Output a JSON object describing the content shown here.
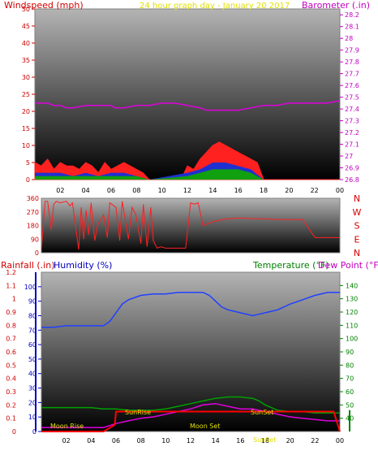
{
  "header": {
    "left_title": "Windspeed (mph)",
    "center_title": "24 hour graph day - January 20 2017",
    "right_title": "Barometer (.in)"
  },
  "bottom_header": {
    "rain_label": "Rainfall (.in)",
    "humidity_label": "Humidity (%)",
    "temp_label": "Temperature (°F)",
    "dew_label": "Dew Point (°F)"
  },
  "colors": {
    "wind": "#ff2020",
    "gust_mid": "#2030d0",
    "gust_low": "#10a010",
    "barometer": "#e000e0",
    "direction": "#ff2020",
    "humidity": "#2040ff",
    "temperature": "#00a000",
    "dew_point": "#e000e0",
    "rain": "#ff0000",
    "title": "#e0e000",
    "axis_red": "#d00000",
    "axis_magenta": "#c000c0",
    "axis_green": "#008000",
    "axis_blue": "#0000c0"
  },
  "chart_data": [
    {
      "type": "area",
      "name": "wind-panel",
      "x_ticks": [
        "02",
        "04",
        "06",
        "08",
        "10",
        "12",
        "14",
        "16",
        "18",
        "20",
        "22",
        "00"
      ],
      "wind_axis": {
        "ticks": [
          0,
          5,
          10,
          15,
          20,
          25,
          30,
          35,
          40,
          45,
          50
        ],
        "ylim": [
          0,
          50
        ]
      },
      "baro_axis": {
        "ticks": [
          "26.8",
          "26.9",
          "27",
          "27.1",
          "27.2",
          "27.3",
          "27.4",
          "27.5",
          "27.6",
          "27.7",
          "27.8",
          "27.9",
          "28",
          "28.1",
          "28.2"
        ],
        "ylim": [
          26.8,
          28.25
        ]
      },
      "barometer": {
        "x": [
          0,
          1,
          1.5,
          2,
          2.5,
          3,
          4,
          5,
          6,
          6.3,
          7,
          8,
          9,
          10,
          11,
          12,
          13,
          13.5,
          14,
          15,
          16,
          17,
          18,
          19,
          20,
          20.5,
          21,
          22,
          23,
          24
        ],
        "y": [
          27.45,
          27.45,
          27.43,
          27.43,
          27.41,
          27.41,
          27.43,
          27.43,
          27.43,
          27.41,
          27.41,
          27.43,
          27.43,
          27.45,
          27.45,
          27.43,
          27.41,
          27.39,
          27.39,
          27.39,
          27.39,
          27.41,
          27.43,
          27.43,
          27.45,
          27.45,
          27.45,
          27.45,
          27.45,
          27.47
        ]
      },
      "wind_speed": {
        "x": [
          0,
          0.5,
          1,
          1.5,
          2,
          2.5,
          3,
          3.5,
          4,
          4.5,
          5,
          5.5,
          6,
          6.5,
          7,
          7.5,
          8,
          8.5,
          9,
          9.5,
          10,
          10.5,
          11,
          11.5,
          12,
          12.5,
          13,
          13.5,
          14,
          14.5,
          15,
          15.5,
          16,
          16.5,
          17,
          17.5,
          18,
          18.5,
          19,
          24
        ],
        "y": [
          5,
          4,
          6,
          3,
          5,
          4,
          4,
          3,
          5,
          4,
          2,
          5,
          3,
          4,
          5,
          4,
          3,
          2,
          0,
          0,
          0,
          0,
          0,
          0,
          4,
          3,
          6,
          8,
          10,
          11,
          10,
          9,
          8,
          7,
          6,
          5,
          0,
          0,
          0,
          0
        ]
      },
      "gust_mid": {
        "x": [
          0,
          1,
          2,
          3,
          4,
          5,
          6,
          7,
          8,
          9,
          12,
          13,
          14,
          15,
          16,
          17,
          18,
          19,
          24
        ],
        "y": [
          2,
          2,
          2,
          1,
          2,
          1,
          2,
          2,
          1,
          0,
          2,
          3,
          5,
          5,
          4,
          3,
          0,
          0,
          0
        ]
      },
      "gust_low": {
        "x": [
          0,
          1,
          2,
          3,
          4,
          5,
          6,
          7,
          8,
          9,
          12,
          13,
          14,
          15,
          16,
          17,
          18,
          19,
          24
        ],
        "y": [
          1,
          1,
          1,
          1,
          1,
          1,
          1,
          1,
          1,
          0,
          1,
          2,
          3,
          3,
          3,
          2,
          0,
          0,
          0
        ]
      }
    },
    {
      "type": "line",
      "name": "direction-panel",
      "y_ticks": [
        0,
        90,
        180,
        270,
        360
      ],
      "ylim": [
        0,
        360
      ],
      "compass": [
        "N",
        "W",
        "S",
        "E",
        "N"
      ],
      "direction": {
        "x": [
          0,
          0.3,
          0.5,
          0.8,
          1,
          1.2,
          1.5,
          2,
          2.3,
          2.5,
          3,
          3.2,
          3.4,
          3.6,
          3.8,
          4,
          4.3,
          4.5,
          5,
          5.3,
          5.5,
          6,
          6.3,
          6.5,
          7,
          7.3,
          7.6,
          8,
          8.2,
          8.5,
          8.8,
          9,
          9.3,
          9.6,
          10,
          10.3,
          10.6,
          11,
          11.3,
          11.6,
          12,
          12.3,
          12.6,
          13,
          14,
          15,
          16,
          17,
          18,
          19,
          19.5,
          20,
          21,
          22,
          24
        ],
        "y": [
          20,
          340,
          340,
          150,
          320,
          340,
          330,
          340,
          310,
          330,
          20,
          300,
          90,
          280,
          120,
          330,
          80,
          180,
          250,
          100,
          330,
          300,
          80,
          340,
          90,
          300,
          250,
          60,
          320,
          40,
          300,
          80,
          30,
          40,
          30,
          30,
          30,
          30,
          30,
          30,
          330,
          320,
          330,
          180,
          210,
          225,
          230,
          225,
          225,
          220,
          220,
          220,
          220,
          100,
          100
        ]
      }
    },
    {
      "type": "line",
      "name": "weather-panel",
      "x_ticks": [
        "02",
        "04",
        "06",
        "08",
        "10",
        "12",
        "14",
        "16",
        "18",
        "20",
        "22",
        "00"
      ],
      "rain_axis": {
        "ticks": [
          "0",
          "0.1",
          "0.2",
          "0.3",
          "0.4",
          "0.5",
          "0.6",
          "0.7",
          "0.8",
          "0.9",
          "1",
          "1.1",
          "1.2"
        ],
        "ylim": [
          0,
          1.2
        ]
      },
      "humidity_axis": {
        "ticks": [
          0,
          10,
          20,
          30,
          40,
          50,
          60,
          70,
          80,
          90,
          100
        ],
        "ylim": [
          0,
          110
        ]
      },
      "temp_axis": {
        "ticks": [
          40,
          50,
          60,
          70,
          80,
          90,
          100,
          110,
          120,
          130,
          140
        ],
        "ylim": [
          30,
          150
        ]
      },
      "annotations": [
        "Moon Rise",
        "SunRise",
        "Moon Set",
        "SunSet",
        "SunSet"
      ],
      "humidity": {
        "x": [
          0,
          1,
          2,
          3,
          4,
          5,
          5.5,
          6,
          6.5,
          7,
          8,
          9,
          10,
          11,
          12,
          13,
          13.5,
          14,
          14.5,
          15,
          16,
          17,
          17.5,
          18,
          19,
          20,
          21,
          22,
          23,
          24
        ],
        "y": [
          72,
          72,
          73,
          73,
          73,
          73,
          76,
          82,
          88,
          91,
          94,
          95,
          95,
          96,
          96,
          96,
          94,
          90,
          86,
          84,
          82,
          80,
          81,
          82,
          84,
          88,
          91,
          94,
          96,
          96
        ]
      },
      "temperature": {
        "x": [
          0,
          1,
          2,
          3,
          4,
          5,
          6,
          7,
          8,
          9,
          10,
          11,
          12,
          13,
          14,
          15,
          16,
          17,
          17.5,
          18,
          19,
          20,
          21,
          22,
          23,
          24
        ],
        "y": [
          48,
          48,
          48,
          48,
          48,
          47,
          47,
          46,
          46,
          46,
          47,
          49,
          51,
          53,
          55,
          56,
          56,
          55,
          53,
          50,
          46,
          45,
          45,
          44,
          44,
          44
        ]
      },
      "dew_point": {
        "x": [
          0,
          4,
          5,
          6,
          7,
          8,
          9,
          10,
          11,
          12,
          13,
          14,
          15,
          16,
          17,
          18,
          19,
          20,
          21,
          22,
          23,
          24
        ],
        "y": [
          33,
          33,
          33,
          36,
          38,
          40,
          41,
          43,
          45,
          47,
          50,
          51,
          49,
          47,
          47,
          45,
          43,
          41,
          40,
          39,
          38,
          38
        ]
      },
      "rainfall": {
        "x": [
          0,
          5,
          5.9,
          6,
          18,
          22.3,
          23,
          23.5,
          24
        ],
        "y": [
          0,
          0,
          0.05,
          0.15,
          0.15,
          0.15,
          0.15,
          0.15,
          0
        ]
      }
    }
  ]
}
